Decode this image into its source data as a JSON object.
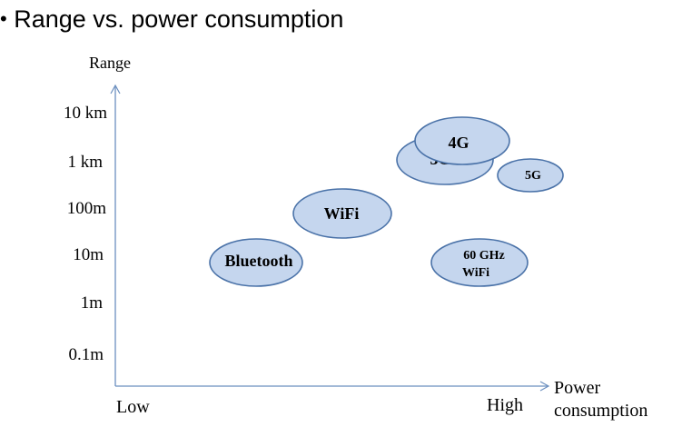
{
  "title": "Range vs. power consumption",
  "y_axis": {
    "label": "Range",
    "ticks": [
      "10 km",
      "1 km",
      "100m",
      "10m",
      "1m",
      "0.1m"
    ]
  },
  "x_axis": {
    "label_line1": "Power",
    "label_line2": "consumption",
    "low_label": "Low",
    "high_label": "High"
  },
  "technologies": [
    {
      "label_lines": [
        "Bluetooth"
      ]
    },
    {
      "label_lines": [
        "WiFi"
      ]
    },
    {
      "label_lines": [
        "3G"
      ]
    },
    {
      "label_lines": [
        "4G"
      ]
    },
    {
      "label_lines": [
        "5G"
      ]
    },
    {
      "label_lines": [
        "60 GHz",
        "WiFi"
      ]
    }
  ],
  "colors": {
    "ellipse_fill": "#c5d6ee",
    "ellipse_stroke": "#4a72a8",
    "axis": "#6b8fbf",
    "text": "#000000"
  }
}
